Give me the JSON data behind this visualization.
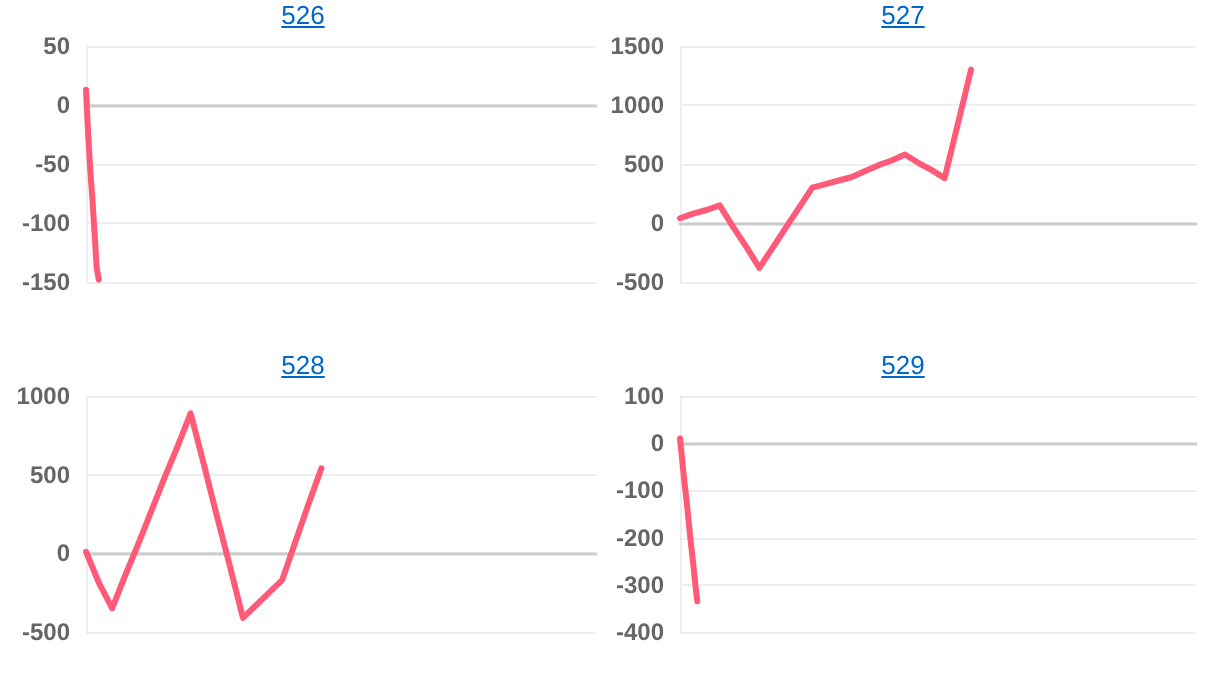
{
  "chart_data": [
    {
      "type": "line",
      "title": "526",
      "categories": [
        null,
        null,
        null,
        null,
        null,
        null,
        null,
        null,
        null,
        null,
        null,
        null,
        null,
        null,
        null,
        null,
        null,
        null,
        null,
        null,
        null,
        null,
        null,
        null,
        null,
        null,
        null,
        null,
        null,
        null,
        null,
        null,
        null,
        null,
        null,
        null,
        null,
        null,
        null,
        null,
        null,
        null,
        null,
        null,
        null,
        null,
        null,
        null,
        null,
        null,
        null,
        null,
        null,
        null,
        null,
        null,
        null,
        null,
        null,
        null,
        null,
        null,
        null,
        null,
        null,
        null,
        null,
        null,
        null,
        null,
        null,
        null,
        null,
        null,
        null,
        null,
        null,
        null,
        null,
        null,
        null,
        null,
        null,
        null,
        null,
        null,
        null,
        null,
        null,
        null,
        null,
        null,
        null,
        null,
        null,
        null,
        null,
        null,
        null,
        null,
        null,
        null,
        null,
        null,
        null,
        null,
        null,
        null,
        null,
        null,
        null,
        null,
        null,
        null,
        null,
        null,
        null,
        null,
        null,
        null,
        null,
        null,
        null,
        null,
        null,
        null,
        null,
        null,
        null,
        null,
        null,
        null,
        null,
        null,
        null,
        null,
        null,
        null,
        null,
        null,
        null,
        null,
        null,
        null,
        null,
        null,
        null,
        null,
        null,
        null,
        null,
        null,
        null,
        null,
        null,
        null,
        null,
        null,
        null,
        null,
        null,
        null,
        null,
        null,
        null,
        null,
        null,
        null,
        null,
        null,
        null,
        null,
        null,
        null,
        null,
        null,
        null,
        null,
        null,
        null,
        null,
        null,
        null,
        null,
        null,
        null,
        null,
        null,
        null,
        null,
        null,
        null,
        null,
        null,
        null,
        null,
        null,
        null,
        null,
        null,
        null,
        null,
        null,
        null,
        null,
        null,
        null,
        null,
        null,
        null,
        null,
        null,
        null,
        null,
        null,
        null,
        null,
        null,
        null,
        null,
        null,
        null,
        null,
        null,
        null,
        null,
        null,
        null,
        null,
        null,
        null,
        null,
        null,
        null,
        null,
        null,
        null,
        null,
        null,
        null
      ],
      "series": [
        {
          "color": "#ff5a78",
          "values": [
            13,
            -25,
            -55,
            -80,
            -108,
            -138,
            -148,
            null,
            null,
            null,
            null,
            null,
            null,
            null,
            null,
            null,
            null,
            null,
            null,
            null,
            null,
            null,
            null,
            null,
            null,
            null,
            null,
            null,
            null,
            null,
            null,
            null,
            null,
            null,
            null,
            null,
            null,
            null,
            null,
            null,
            null,
            null,
            null,
            null,
            null,
            null,
            null,
            null,
            null,
            null,
            null,
            null,
            null,
            null,
            null,
            null,
            null,
            null,
            null,
            null,
            null,
            null,
            null,
            null,
            null,
            null,
            null,
            null,
            null,
            null,
            null,
            null,
            null,
            null,
            null,
            null,
            null,
            null,
            null,
            null,
            null,
            null,
            null,
            null,
            null,
            null,
            null,
            null,
            null,
            null,
            null,
            null,
            null,
            null,
            null,
            null,
            null,
            null,
            null,
            null,
            null,
            null,
            null,
            null,
            null,
            null,
            null,
            null,
            null,
            null,
            null,
            null,
            null,
            null,
            null,
            null,
            null,
            null,
            null,
            null,
            null,
            null,
            null,
            null,
            null,
            null,
            null,
            null,
            null,
            null,
            null,
            null,
            null,
            null,
            null,
            null,
            null,
            null,
            null,
            null,
            null,
            null,
            null,
            null,
            null,
            null,
            null,
            null,
            null,
            null,
            null,
            null,
            null,
            null,
            null,
            null,
            null,
            null,
            null,
            null,
            null,
            null,
            null,
            null,
            null,
            null,
            null,
            null,
            null,
            null,
            null,
            null,
            null,
            null,
            null,
            null,
            null,
            null,
            null,
            null,
            null,
            null,
            null,
            null,
            null,
            null,
            null,
            null,
            null,
            null,
            null,
            null,
            null,
            null,
            null,
            null,
            null,
            null,
            null,
            null,
            null,
            null,
            null,
            null,
            null,
            null,
            null,
            null,
            null,
            null,
            null,
            null,
            null,
            null,
            null,
            null,
            null,
            null,
            null,
            null,
            null,
            null,
            null,
            null,
            null,
            null,
            null,
            null,
            null,
            null,
            null,
            null,
            null,
            null,
            null,
            null,
            null,
            null,
            null,
            null
          ]
        }
      ],
      "ylim": [
        -150,
        50
      ],
      "yticks": [
        -150,
        -100,
        -50,
        0,
        50
      ],
      "grid": "y",
      "line_style": "solid",
      "tick_labels": "y"
    },
    {
      "type": "line",
      "title": "527",
      "categories": [
        null,
        null,
        null,
        null,
        null,
        null,
        null,
        null,
        null,
        null,
        null,
        null,
        null,
        null,
        null,
        null,
        null,
        null,
        null,
        null,
        null,
        null,
        null,
        null,
        null,
        null,
        null,
        null,
        null,
        null,
        null,
        null,
        null,
        null,
        null,
        null,
        null,
        null,
        null,
        null
      ],
      "series": [
        {
          "color": "#ff5a78",
          "values": [
            40,
            80,
            110,
            150,
            -30,
            -200,
            -380,
            -210,
            -40,
            130,
            300,
            330,
            360,
            390,
            440,
            490,
            530,
            580,
            510,
            450,
            380,
            840,
            1300,
            null,
            null,
            null,
            null,
            null,
            null,
            null,
            null,
            null,
            null,
            null,
            null,
            null,
            null,
            null,
            null,
            null
          ]
        }
      ],
      "ylim": [
        -500,
        1500
      ],
      "yticks": [
        -500,
        0,
        500,
        1000,
        1500
      ],
      "grid": "y",
      "line_style": "solid",
      "tick_labels": "y"
    },
    {
      "type": "line",
      "title": "528",
      "categories": [
        null,
        null,
        null,
        null,
        null,
        null,
        null,
        null,
        null,
        null,
        null,
        null,
        null,
        null,
        null,
        null,
        null,
        null,
        null,
        null,
        null,
        null,
        null,
        null,
        null,
        null,
        null,
        null,
        null,
        null,
        null,
        null,
        null,
        null,
        null,
        null,
        null,
        null,
        null,
        null
      ],
      "series": [
        {
          "color": "#ff5a78",
          "values": [
            10,
            -190,
            -350,
            -140,
            60,
            270,
            480,
            680,
            890,
            570,
            240,
            -80,
            -410,
            -330,
            -250,
            -170,
            70,
            310,
            540,
            null,
            null,
            null,
            null,
            null,
            null,
            null,
            null,
            null,
            null,
            null,
            null,
            null,
            null,
            null,
            null,
            null,
            null,
            null,
            null,
            null
          ]
        }
      ],
      "ylim": [
        -500,
        1000
      ],
      "yticks": [
        -500,
        0,
        500,
        1000
      ],
      "grid": "y",
      "line_style": "solid",
      "tick_labels": "y"
    },
    {
      "type": "line",
      "title": "529",
      "categories": [
        null,
        null,
        null,
        null,
        null,
        null,
        null,
        null,
        null,
        null,
        null,
        null,
        null,
        null,
        null,
        null,
        null,
        null,
        null,
        null,
        null,
        null,
        null,
        null,
        null,
        null,
        null,
        null,
        null,
        null,
        null,
        null,
        null,
        null,
        null,
        null,
        null,
        null,
        null,
        null,
        null,
        null,
        null,
        null,
        null,
        null,
        null,
        null,
        null,
        null,
        null,
        null,
        null,
        null,
        null,
        null,
        null,
        null,
        null,
        null,
        null,
        null,
        null,
        null,
        null,
        null,
        null,
        null,
        null,
        null,
        null,
        null,
        null,
        null,
        null,
        null,
        null,
        null,
        null,
        null,
        null,
        null,
        null,
        null,
        null,
        null,
        null,
        null,
        null,
        null,
        null,
        null,
        null,
        null,
        null,
        null,
        null,
        null,
        null,
        null,
        null,
        null,
        null,
        null,
        null,
        null,
        null,
        null,
        null,
        null,
        null,
        null,
        null,
        null,
        null,
        null,
        null,
        null,
        null,
        null,
        null,
        null,
        null,
        null,
        null,
        null,
        null,
        null,
        null,
        null,
        null,
        null,
        null,
        null,
        null,
        null,
        null,
        null,
        null,
        null,
        null,
        null,
        null,
        null,
        null,
        null,
        null,
        null,
        null,
        null,
        null,
        null,
        null,
        null,
        null,
        null,
        null,
        null,
        null,
        null,
        null,
        null,
        null,
        null,
        null,
        null,
        null,
        null,
        null,
        null,
        null,
        null,
        null,
        null,
        null,
        null,
        null,
        null,
        null,
        null,
        null,
        null,
        null,
        null,
        null,
        null,
        null,
        null,
        null,
        null,
        null,
        null,
        null,
        null,
        null,
        null,
        null,
        null,
        null,
        null,
        null,
        null,
        null,
        null,
        null,
        null,
        null,
        null,
        null,
        null,
        null,
        null,
        null,
        null,
        null,
        null,
        null,
        null,
        null,
        null,
        null,
        null,
        null,
        null,
        null,
        null,
        null,
        null,
        null,
        null,
        null,
        null,
        null,
        null,
        null,
        null,
        null,
        null,
        null,
        null
      ],
      "series": [
        {
          "color": "#ff5a78",
          "values": [
            10,
            -35,
            -80,
            -120,
            -165,
            -210,
            -250,
            -295,
            -335,
            null,
            null,
            null,
            null,
            null,
            null,
            null,
            null,
            null,
            null,
            null,
            null,
            null,
            null,
            null,
            null,
            null,
            null,
            null,
            null,
            null,
            null,
            null,
            null,
            null,
            null,
            null,
            null,
            null,
            null,
            null,
            null,
            null,
            null,
            null,
            null,
            null,
            null,
            null,
            null,
            null,
            null,
            null,
            null,
            null,
            null,
            null,
            null,
            null,
            null,
            null,
            null,
            null,
            null,
            null,
            null,
            null,
            null,
            null,
            null,
            null,
            null,
            null,
            null,
            null,
            null,
            null,
            null,
            null,
            null,
            null,
            null,
            null,
            null,
            null,
            null,
            null,
            null,
            null,
            null,
            null,
            null,
            null,
            null,
            null,
            null,
            null,
            null,
            null,
            null,
            null,
            null,
            null,
            null,
            null,
            null,
            null,
            null,
            null,
            null,
            null,
            null,
            null,
            null,
            null,
            null,
            null,
            null,
            null,
            null,
            null,
            null,
            null,
            null,
            null,
            null,
            null,
            null,
            null,
            null,
            null,
            null,
            null,
            null,
            null,
            null,
            null,
            null,
            null,
            null,
            null,
            null,
            null,
            null,
            null,
            null,
            null,
            null,
            null,
            null,
            null,
            null,
            null,
            null,
            null,
            null,
            null,
            null,
            null,
            null,
            null,
            null,
            null,
            null,
            null,
            null,
            null,
            null,
            null,
            null,
            null,
            null,
            null,
            null,
            null,
            null,
            null,
            null,
            null,
            null,
            null,
            null,
            null,
            null,
            null,
            null,
            null,
            null,
            null,
            null,
            null,
            null,
            null,
            null,
            null,
            null,
            null,
            null,
            null,
            null,
            null,
            null,
            null,
            null,
            null,
            null,
            null,
            null,
            null,
            null,
            null,
            null,
            null,
            null,
            null,
            null,
            null,
            null,
            null,
            null,
            null,
            null,
            null,
            null,
            null,
            null,
            null,
            null,
            null,
            null,
            null,
            null,
            null,
            null,
            null,
            null,
            null,
            null,
            null,
            null,
            null
          ]
        }
      ],
      "ylim": [
        -400,
        100
      ],
      "yticks": [
        -400,
        -300,
        -200,
        -100,
        0,
        100
      ],
      "grid": "y",
      "line_style": "solid",
      "tick_labels": "y"
    }
  ]
}
